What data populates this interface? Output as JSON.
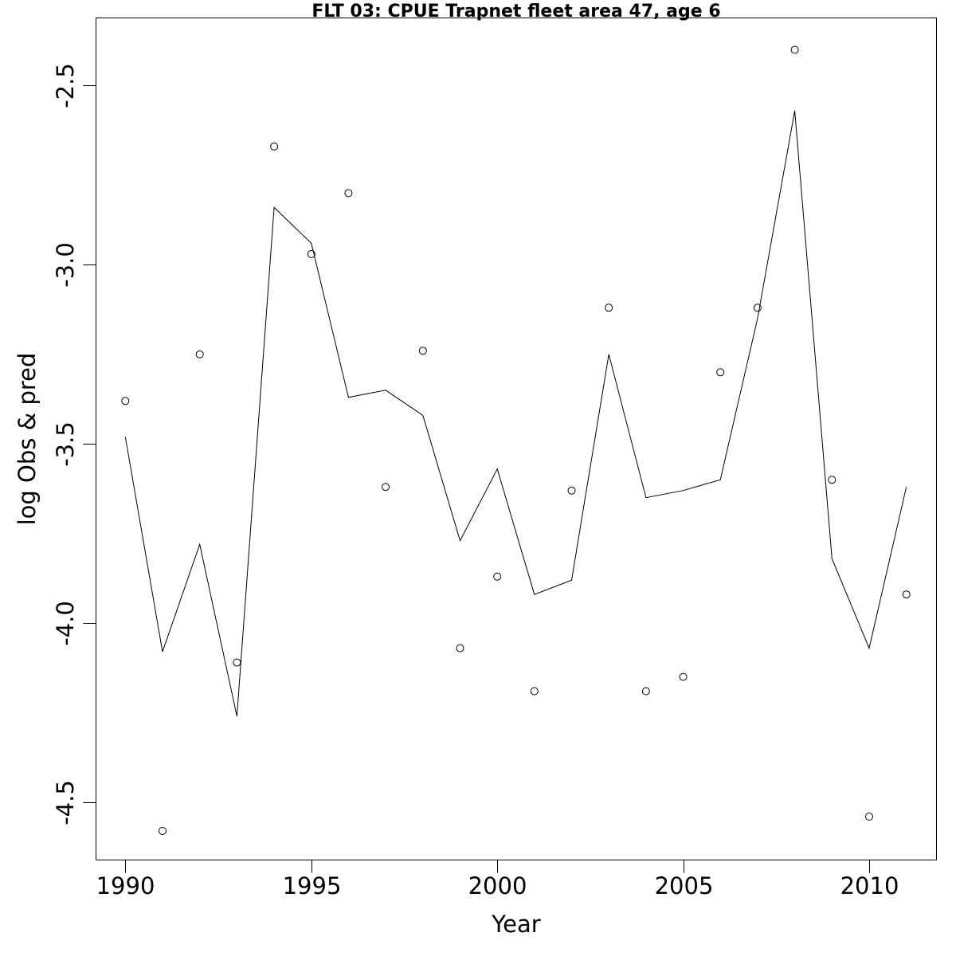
{
  "chart_data": {
    "type": "line",
    "title": "FLT 03: CPUE Trapnet fleet area 47, age 6",
    "xlabel": "Year",
    "ylabel": "log Obs & pred",
    "xlim": [
      1989.2,
      2011.8
    ],
    "ylim": [
      -4.66,
      -2.31
    ],
    "x_ticks": [
      {
        "value": 1990,
        "label": "1990"
      },
      {
        "value": 1995,
        "label": "1995"
      },
      {
        "value": 2000,
        "label": "2000"
      },
      {
        "value": 2005,
        "label": "2005"
      },
      {
        "value": 2010,
        "label": "2010"
      }
    ],
    "y_ticks": [
      {
        "value": -4.5,
        "label": "-4.5"
      },
      {
        "value": -4.0,
        "label": "-4.0"
      },
      {
        "value": -3.5,
        "label": "-3.5"
      },
      {
        "value": -3.0,
        "label": "-3.0"
      },
      {
        "value": -2.5,
        "label": "-2.5"
      }
    ],
    "x": [
      1990,
      1991,
      1992,
      1993,
      1994,
      1995,
      1996,
      1997,
      1998,
      1999,
      2000,
      2001,
      2002,
      2003,
      2004,
      2005,
      2006,
      2007,
      2008,
      2009,
      2010,
      2011
    ],
    "series": [
      {
        "style": "points",
        "values": [
          -3.38,
          -4.58,
          -3.25,
          -4.11,
          -2.67,
          -2.97,
          -2.8,
          -3.62,
          -3.24,
          -4.07,
          -3.87,
          -4.19,
          -3.63,
          -3.12,
          -4.19,
          -4.15,
          -3.3,
          -3.12,
          -2.4,
          -3.6,
          -4.54,
          -3.92
        ]
      },
      {
        "style": "line",
        "values": [
          -3.48,
          -4.08,
          -3.78,
          -4.26,
          -2.84,
          -2.94,
          -3.37,
          -3.35,
          -3.42,
          -3.77,
          -3.57,
          -3.92,
          -3.88,
          -3.25,
          -3.65,
          -3.63,
          -3.6,
          -3.15,
          -2.57,
          -3.82,
          -4.07,
          -3.62
        ]
      }
    ],
    "grid": false,
    "legend": "none"
  }
}
